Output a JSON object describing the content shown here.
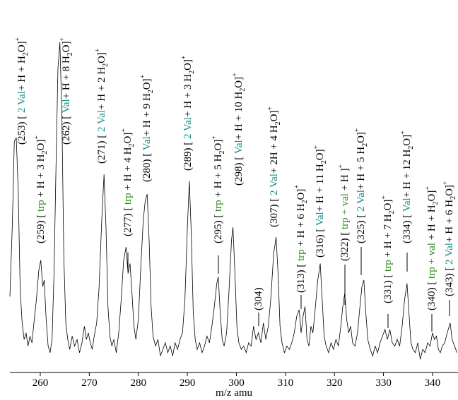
{
  "chart_data": {
    "type": "line",
    "xlabel": "m/z amu",
    "xlim": [
      253.8,
      345.2
    ],
    "xticks": [
      260,
      270,
      280,
      290,
      300,
      310,
      320,
      330,
      340
    ],
    "ylim": [
      0,
      100
    ],
    "color": "#000000",
    "x": [
      253.8,
      254.3,
      254.7,
      255.1,
      255.5,
      255.9,
      256.3,
      256.7,
      257.1,
      257.5,
      257.9,
      258.3,
      258.7,
      259.2,
      259.7,
      260.1,
      260.5,
      260.8,
      261.2,
      261.6,
      262.0,
      262.4,
      262.8,
      263.2,
      263.6,
      264.0,
      264.4,
      264.8,
      265.2,
      265.6,
      266.0,
      266.5,
      267.0,
      267.5,
      268.0,
      268.5,
      269.0,
      269.4,
      269.8,
      270.2,
      270.6,
      271.0,
      271.5,
      272.0,
      272.5,
      273.0,
      273.4,
      273.8,
      274.2,
      274.6,
      275.0,
      275.5,
      276.0,
      276.5,
      277.0,
      277.5,
      277.9,
      278.3,
      278.7,
      279.1,
      279.5,
      280.0,
      280.5,
      281.0,
      281.4,
      281.8,
      282.2,
      282.6,
      283.0,
      283.5,
      284.0,
      284.5,
      285.0,
      285.5,
      286.0,
      286.5,
      287.0,
      287.5,
      288.0,
      288.5,
      289.0,
      289.5,
      290.0,
      290.4,
      290.8,
      291.2,
      291.6,
      292.0,
      292.5,
      293.0,
      293.5,
      294.0,
      294.5,
      295.0,
      295.5,
      296.0,
      296.3,
      296.7,
      297.1,
      297.5,
      298.0,
      298.5,
      299.0,
      299.3,
      299.7,
      300.1,
      300.5,
      301.0,
      301.5,
      302.0,
      302.5,
      303.0,
      303.5,
      304.0,
      304.5,
      305.0,
      305.5,
      306.0,
      306.5,
      307.0,
      307.6,
      308.1,
      308.5,
      308.9,
      309.3,
      309.8,
      310.3,
      310.8,
      311.3,
      311.8,
      312.3,
      312.8,
      313.2,
      313.6,
      314.0,
      314.4,
      314.8,
      315.2,
      315.6,
      316.0,
      316.6,
      317.1,
      317.5,
      317.9,
      318.3,
      318.8,
      319.3,
      319.8,
      320.3,
      320.8,
      321.3,
      321.7,
      322.1,
      322.5,
      322.9,
      323.3,
      323.7,
      324.2,
      324.7,
      325.2,
      325.6,
      326.0,
      326.4,
      326.8,
      327.3,
      327.8,
      328.3,
      328.8,
      329.3,
      329.8,
      330.3,
      330.8,
      331.3,
      331.8,
      332.3,
      332.8,
      333.3,
      333.8,
      334.3,
      334.8,
      335.2,
      335.6,
      336.0,
      336.5,
      337.0,
      337.5,
      338.0,
      338.5,
      339.0,
      339.5,
      340.0,
      340.4,
      340.8,
      341.2,
      341.6,
      342.0,
      342.5,
      343.0,
      343.6,
      344.0,
      344.5,
      345.0
    ],
    "values": [
      23,
      45,
      70,
      71,
      55,
      25,
      15,
      10,
      12,
      8,
      11,
      9,
      15,
      22,
      31,
      34,
      26,
      28,
      16,
      8,
      6,
      10,
      30,
      62,
      92,
      100,
      78,
      35,
      15,
      10,
      7,
      11,
      8,
      10,
      6,
      9,
      14,
      10,
      12,
      9,
      7,
      11,
      15,
      26,
      45,
      60,
      44,
      20,
      11,
      8,
      10,
      6,
      12,
      22,
      34,
      38,
      30,
      33,
      24,
      14,
      10,
      16,
      32,
      46,
      52,
      54,
      40,
      20,
      11,
      8,
      10,
      5,
      7,
      9,
      6,
      8,
      5,
      9,
      7,
      10,
      12,
      22,
      44,
      58,
      42,
      18,
      10,
      7,
      9,
      6,
      8,
      11,
      9,
      14,
      20,
      27,
      29,
      18,
      10,
      8,
      12,
      25,
      40,
      44,
      30,
      14,
      9,
      7,
      8,
      6,
      9,
      8,
      14,
      10,
      12,
      9,
      15,
      10,
      14,
      22,
      36,
      41,
      30,
      14,
      9,
      6,
      8,
      7,
      9,
      12,
      17,
      19,
      12,
      17,
      20,
      10,
      8,
      14,
      12,
      18,
      28,
      33,
      22,
      11,
      8,
      6,
      9,
      7,
      10,
      8,
      14,
      20,
      24,
      16,
      12,
      14,
      9,
      8,
      12,
      20,
      26,
      28,
      18,
      10,
      7,
      5,
      8,
      6,
      9,
      11,
      13,
      10,
      13,
      9,
      8,
      10,
      8,
      14,
      22,
      27,
      18,
      9,
      7,
      6,
      9,
      4,
      7,
      6,
      9,
      8,
      12,
      10,
      11,
      7,
      6,
      8,
      9,
      12,
      15,
      10,
      8,
      6
    ],
    "annotations": [
      [
        {
          "text": "(253) [ "
        },
        {
          "text": "2 Val",
          "color": "#1a8c8c"
        },
        {
          "text": "+ H + H"
        },
        {
          "text": "2",
          "script": "sub"
        },
        {
          "text": "O]"
        },
        {
          "text": "+",
          "script": "sup"
        }
      ],
      [
        {
          "text": "(259) [ "
        },
        {
          "text": "trp",
          "color": "#2e8b1a"
        },
        {
          "text": " + H + 3 H"
        },
        {
          "text": "2",
          "script": "sub"
        },
        {
          "text": "O]"
        },
        {
          "text": "+",
          "script": "sup"
        }
      ],
      [
        {
          "text": "(262) [ "
        },
        {
          "text": "Val",
          "color": "#1a8c8c"
        },
        {
          "text": "+ H + 8 H"
        },
        {
          "text": "2",
          "script": "sub"
        },
        {
          "text": "O]"
        },
        {
          "text": "+",
          "script": "sup"
        }
      ],
      [
        {
          "text": "(271) [ "
        },
        {
          "text": "2 Val",
          "color": "#1a8c8c"
        },
        {
          "text": "+ H + 2 H"
        },
        {
          "text": "2",
          "script": "sub"
        },
        {
          "text": "O]"
        },
        {
          "text": "+",
          "script": "sup"
        }
      ],
      [
        {
          "text": "(277) [ "
        },
        {
          "text": "trp",
          "color": "#2e8b1a"
        },
        {
          "text": " + H + 4 H"
        },
        {
          "text": "2",
          "script": "sub"
        },
        {
          "text": "O]"
        },
        {
          "text": "+",
          "script": "sup"
        }
      ],
      [
        {
          "text": "(280) [ "
        },
        {
          "text": "Val",
          "color": "#1a8c8c"
        },
        {
          "text": "+ H + 9 H"
        },
        {
          "text": "2",
          "script": "sub"
        },
        {
          "text": "O]"
        },
        {
          "text": "+",
          "script": "sup"
        }
      ],
      [
        {
          "text": "(289) [ "
        },
        {
          "text": "2 Val",
          "color": "#1a8c8c"
        },
        {
          "text": "+ H + 3 H"
        },
        {
          "text": "2",
          "script": "sub"
        },
        {
          "text": "O]"
        },
        {
          "text": "+",
          "script": "sup"
        }
      ],
      [
        {
          "text": "(295) [ "
        },
        {
          "text": "trp",
          "color": "#2e8b1a"
        },
        {
          "text": " + H + 5 H"
        },
        {
          "text": "2",
          "script": "sub"
        },
        {
          "text": "O]"
        },
        {
          "text": "+",
          "script": "sup"
        }
      ],
      [
        {
          "text": "(298) [ "
        },
        {
          "text": "Val",
          "color": "#1a8c8c"
        },
        {
          "text": "+ H + 10 H"
        },
        {
          "text": "2",
          "script": "sub"
        },
        {
          "text": "O]"
        },
        {
          "text": "+",
          "script": "sup"
        }
      ],
      [
        {
          "text": "(304)"
        }
      ],
      [
        {
          "text": "(307) [ "
        },
        {
          "text": "2 Val",
          "color": "#1a8c8c"
        },
        {
          "text": "+ 2H + 4 H"
        },
        {
          "text": "2",
          "script": "sub"
        },
        {
          "text": "O]"
        },
        {
          "text": "+",
          "script": "sup"
        }
      ],
      [
        {
          "text": "(313) [ "
        },
        {
          "text": "trp",
          "color": "#2e8b1a"
        },
        {
          "text": " + H + 6 H"
        },
        {
          "text": "2",
          "script": "sub"
        },
        {
          "text": "O]"
        },
        {
          "text": "+",
          "script": "sup"
        }
      ],
      [
        {
          "text": "(316) [ "
        },
        {
          "text": "Val",
          "color": "#1a8c8c"
        },
        {
          "text": "+ H + 11 H"
        },
        {
          "text": "2",
          "script": "sub"
        },
        {
          "text": "O]"
        },
        {
          "text": "+",
          "script": "sup"
        }
      ],
      [
        {
          "text": "(322) [ "
        },
        {
          "text": "trp + val",
          "color": "#2e8b1a"
        },
        {
          "text": " + H ]"
        },
        {
          "text": "+",
          "script": "sup"
        }
      ],
      [
        {
          "text": "(325) [ "
        },
        {
          "text": "2 Val",
          "color": "#1a8c8c"
        },
        {
          "text": "+ H + 5 H"
        },
        {
          "text": "2",
          "script": "sub"
        },
        {
          "text": "O]"
        },
        {
          "text": "+",
          "script": "sup"
        }
      ],
      [
        {
          "text": "(331) [ "
        },
        {
          "text": "trp",
          "color": "#2e8b1a"
        },
        {
          "text": " + H + 7 H"
        },
        {
          "text": "2",
          "script": "sub"
        },
        {
          "text": "O]"
        },
        {
          "text": "+",
          "script": "sup"
        }
      ],
      [
        {
          "text": "(334) [ "
        },
        {
          "text": "Val",
          "color": "#1a8c8c"
        },
        {
          "text": "+ H + 12 H"
        },
        {
          "text": "2",
          "script": "sub"
        },
        {
          "text": "O]"
        },
        {
          "text": "+",
          "script": "sup"
        }
      ],
      [
        {
          "text": "(340) [ "
        },
        {
          "text": "trp + val",
          "color": "#2e8b1a"
        },
        {
          "text": " + H + H"
        },
        {
          "text": "2",
          "script": "sub"
        },
        {
          "text": "O]"
        },
        {
          "text": "+",
          "script": "sup"
        }
      ],
      [
        {
          "text": "(343) [ "
        },
        {
          "text": "2 Val",
          "color": "#1a8c8c"
        },
        {
          "text": "+ H + 6 H"
        },
        {
          "text": "2",
          "script": "sub"
        },
        {
          "text": "O]"
        },
        {
          "text": "+",
          "script": "sup"
        }
      ]
    ]
  }
}
